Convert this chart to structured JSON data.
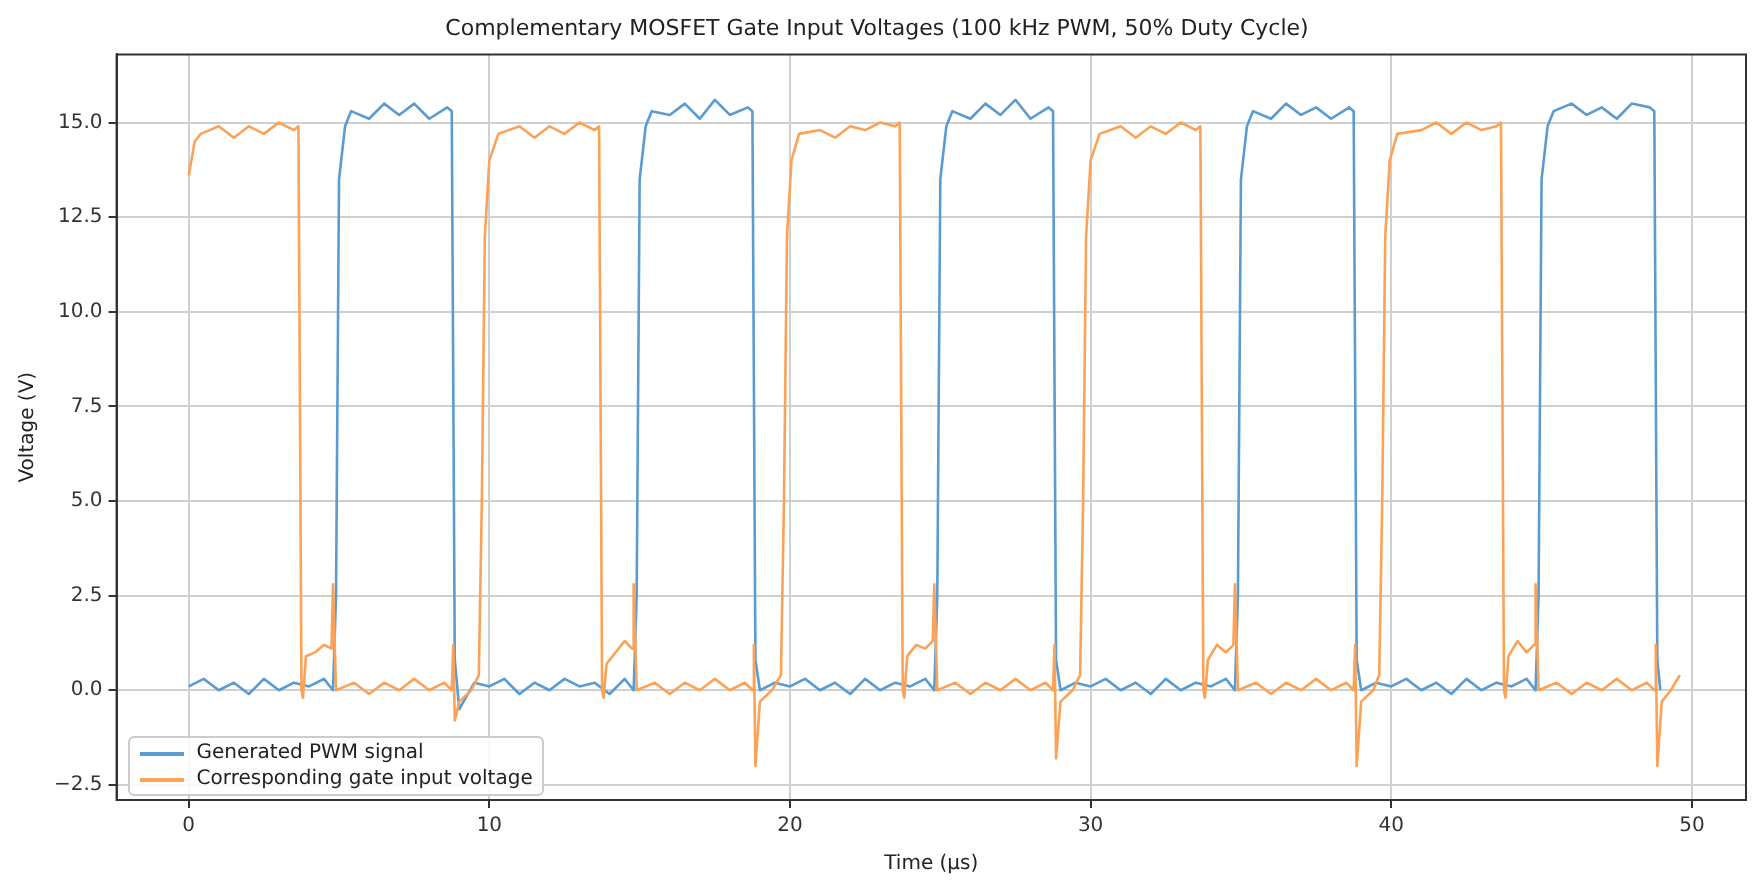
{
  "chart_data": {
    "type": "line",
    "title": "Complementary MOSFET Gate Input Voltages (100 kHz PWM, 50% Duty Cycle)",
    "xlabel": "Time (µs)",
    "ylabel": "Voltage (V)",
    "xlim": [
      -2.4,
      51.8
    ],
    "xticks": [
      0,
      10,
      20,
      30,
      40,
      50
    ],
    "ylim": [
      -2.9,
      16.8
    ],
    "yticks": [
      {
        "value": -2.5,
        "label": "−2.5"
      },
      {
        "value": 0,
        "label": "0.0"
      },
      {
        "value": 2.5,
        "label": "2.5"
      },
      {
        "value": 5,
        "label": "5.0"
      },
      {
        "value": 7.5,
        "label": "7.5"
      },
      {
        "value": 10,
        "label": "10.0"
      },
      {
        "value": 12.5,
        "label": "12.5"
      },
      {
        "value": 15,
        "label": "15.0"
      }
    ],
    "grid": true,
    "legend": "bottom left",
    "marker": "none",
    "line_style": "solid",
    "series": [
      {
        "name": "Generated PWM signal",
        "color": "#5a9bd0",
        "x": [
          0,
          0.5,
          1,
          1.5,
          2,
          2.5,
          3,
          3.5,
          4,
          4.5,
          4.8,
          4.9,
          5,
          5.2,
          5.4,
          6,
          6.5,
          7,
          7.5,
          8,
          8.6,
          8.75,
          8.85,
          9,
          9.5,
          10,
          10.5,
          11,
          11.5,
          12,
          12.5,
          13,
          13.5,
          14,
          14.5,
          14.8,
          14.9,
          15,
          15.2,
          15.4,
          16,
          16.5,
          17,
          17.5,
          18,
          18.6,
          18.75,
          18.85,
          19,
          19.5,
          20,
          20.5,
          21,
          21.5,
          22,
          22.5,
          23,
          23.5,
          24,
          24.5,
          24.8,
          24.9,
          25,
          25.2,
          25.4,
          26,
          26.5,
          27,
          27.5,
          28,
          28.6,
          28.75,
          28.85,
          29,
          29.5,
          30,
          30.5,
          31,
          31.5,
          32,
          32.5,
          33,
          33.5,
          34,
          34.5,
          34.8,
          34.9,
          35,
          35.2,
          35.4,
          36,
          36.5,
          37,
          37.5,
          38,
          38.6,
          38.75,
          38.85,
          39,
          39.5,
          40,
          40.5,
          41,
          41.5,
          42,
          42.5,
          43,
          43.5,
          44,
          44.5,
          44.8,
          44.9,
          45,
          45.2,
          45.4,
          46,
          46.5,
          47,
          47.5,
          48,
          48.6,
          48.75,
          48.85,
          48.95
        ],
        "values": [
          0.1,
          0.3,
          0.0,
          0.2,
          -0.1,
          0.3,
          0.0,
          0.2,
          0.1,
          0.3,
          0.0,
          2.5,
          13.5,
          14.9,
          15.3,
          15.1,
          15.5,
          15.2,
          15.5,
          15.1,
          15.4,
          15.3,
          0.8,
          -0.5,
          0.2,
          0.1,
          0.3,
          -0.1,
          0.2,
          0.0,
          0.3,
          0.1,
          0.2,
          -0.1,
          0.3,
          0.0,
          2.5,
          13.5,
          14.9,
          15.3,
          15.2,
          15.5,
          15.1,
          15.6,
          15.2,
          15.4,
          15.3,
          0.8,
          0.0,
          0.2,
          0.1,
          0.3,
          0.0,
          0.2,
          -0.1,
          0.3,
          0.0,
          0.2,
          0.1,
          0.3,
          0.0,
          2.5,
          13.5,
          14.9,
          15.3,
          15.1,
          15.5,
          15.2,
          15.6,
          15.1,
          15.4,
          15.3,
          0.8,
          0.0,
          0.2,
          0.1,
          0.3,
          0.0,
          0.2,
          -0.1,
          0.3,
          0.0,
          0.2,
          0.1,
          0.3,
          0.0,
          2.5,
          13.5,
          14.9,
          15.3,
          15.1,
          15.5,
          15.2,
          15.4,
          15.1,
          15.4,
          15.3,
          0.8,
          0.0,
          0.2,
          0.1,
          0.3,
          0.0,
          0.2,
          -0.1,
          0.3,
          0.0,
          0.2,
          0.1,
          0.3,
          0.0,
          2.5,
          13.5,
          14.9,
          15.3,
          15.5,
          15.2,
          15.4,
          15.1,
          15.5,
          15.4,
          15.3,
          0.8,
          0.0
        ]
      },
      {
        "name": "Corresponding gate input voltage",
        "color": "#fba257",
        "x": [
          0,
          0.2,
          0.4,
          1,
          1.5,
          2,
          2.5,
          3,
          3.5,
          3.65,
          3.75,
          3.8,
          3.9,
          4.2,
          4.5,
          4.75,
          4.8,
          4.9,
          5.5,
          6,
          6.5,
          7,
          7.5,
          8,
          8.5,
          8.75,
          8.8,
          8.85,
          9,
          9.4,
          9.65,
          9.75,
          9.85,
          10,
          10.3,
          11,
          11.5,
          12,
          12.5,
          13,
          13.5,
          13.65,
          13.75,
          13.8,
          13.9,
          14.2,
          14.5,
          14.75,
          14.8,
          14.9,
          15.5,
          16,
          16.5,
          17,
          17.5,
          18,
          18.5,
          18.75,
          18.8,
          18.85,
          19,
          19.4,
          19.7,
          19.8,
          19.9,
          20.05,
          20.3,
          21,
          21.5,
          22,
          22.5,
          23,
          23.5,
          23.65,
          23.75,
          23.8,
          23.9,
          24.2,
          24.5,
          24.75,
          24.8,
          24.9,
          25.5,
          26,
          26.5,
          27,
          27.5,
          28,
          28.5,
          28.75,
          28.8,
          28.85,
          29,
          29.4,
          29.65,
          29.75,
          29.85,
          30,
          30.3,
          31,
          31.5,
          32,
          32.5,
          33,
          33.5,
          33.65,
          33.75,
          33.8,
          33.9,
          34.2,
          34.5,
          34.75,
          34.8,
          34.9,
          35.5,
          36,
          36.5,
          37,
          37.5,
          38,
          38.5,
          38.75,
          38.8,
          38.85,
          39,
          39.4,
          39.6,
          39.7,
          39.8,
          39.95,
          40.2,
          41,
          41.5,
          42,
          42.5,
          43,
          43.5,
          43.65,
          43.75,
          43.8,
          43.9,
          44.2,
          44.5,
          44.75,
          44.8,
          44.9,
          45.5,
          46,
          46.5,
          47,
          47.5,
          48,
          48.5,
          48.75,
          48.8,
          48.85,
          49,
          49.3,
          49.6
        ],
        "values": [
          13.6,
          14.5,
          14.7,
          14.9,
          14.6,
          14.9,
          14.7,
          15.0,
          14.8,
          14.9,
          0.0,
          -0.2,
          0.9,
          1.0,
          1.2,
          1.1,
          2.8,
          0.0,
          0.2,
          -0.1,
          0.2,
          0.0,
          0.3,
          0.0,
          0.2,
          0.0,
          1.2,
          -0.8,
          -0.3,
          0.0,
          0.4,
          5,
          12.0,
          14.0,
          14.7,
          14.9,
          14.6,
          14.9,
          14.7,
          15.0,
          14.8,
          14.9,
          0.0,
          -0.2,
          0.7,
          1.0,
          1.3,
          1.1,
          2.8,
          0.0,
          0.2,
          -0.1,
          0.2,
          0.0,
          0.3,
          0.0,
          0.2,
          0.0,
          1.2,
          -2.0,
          -0.3,
          0.0,
          0.4,
          5,
          12.0,
          14.0,
          14.7,
          14.8,
          14.6,
          14.9,
          14.8,
          15.0,
          14.9,
          15.0,
          0.0,
          -0.2,
          0.9,
          1.2,
          1.1,
          1.3,
          2.8,
          0.0,
          0.2,
          -0.1,
          0.2,
          0.0,
          0.3,
          0.0,
          0.2,
          0.0,
          1.2,
          -1.8,
          -0.3,
          0.0,
          0.4,
          5,
          12.0,
          14.0,
          14.7,
          14.9,
          14.6,
          14.9,
          14.7,
          15.0,
          14.8,
          14.9,
          0.0,
          -0.2,
          0.8,
          1.2,
          1.0,
          1.2,
          2.8,
          0.0,
          0.2,
          -0.1,
          0.2,
          0.0,
          0.3,
          0.0,
          0.2,
          0.0,
          1.2,
          -2.0,
          -0.3,
          0.0,
          0.4,
          5,
          12.0,
          14.0,
          14.7,
          14.8,
          15.0,
          14.7,
          15.0,
          14.8,
          14.9,
          15.0,
          0.0,
          -0.2,
          0.9,
          1.3,
          1.0,
          1.2,
          2.8,
          0.0,
          0.2,
          -0.1,
          0.2,
          0.0,
          0.3,
          0.0,
          0.2,
          0.0,
          1.2,
          -2.0,
          -0.3,
          0.0,
          0.4
        ]
      }
    ]
  }
}
